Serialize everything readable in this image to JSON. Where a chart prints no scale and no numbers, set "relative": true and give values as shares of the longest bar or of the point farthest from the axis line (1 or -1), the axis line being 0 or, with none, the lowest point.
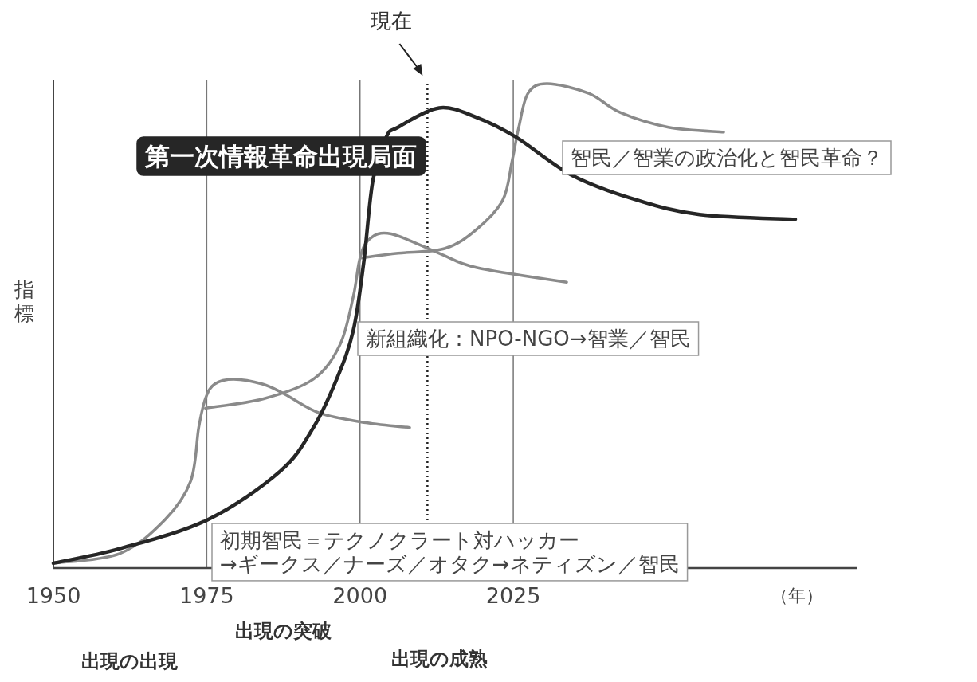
{
  "chart_data": {
    "type": "line",
    "relative": true,
    "ylabel": "指標",
    "xlabel": "（年）",
    "xlim": [
      1950,
      2081
    ],
    "xticks": [
      1950,
      1975,
      2000,
      2025
    ],
    "tick_labels": "x",
    "grid": false,
    "marker": "none",
    "line_style": "solid",
    "series": [
      {
        "name": "第一次情報革命出現局面",
        "color": "#262626",
        "x": [
          1950,
          1960.8,
          1975.2,
          1987,
          1992.4,
          1996.2,
          1998.9,
          2000.6,
          2002.1,
          2004.3,
          2006.2,
          2012.9,
          2019.1,
          2025.4,
          2034.7,
          2045.1,
          2055.4,
          2071
        ],
        "values": [
          0.01,
          0.04,
          0.1,
          0.2,
          0.29,
          0.39,
          0.49,
          0.63,
          0.8,
          0.89,
          0.91,
          0.95,
          0.93,
          0.89,
          0.81,
          0.76,
          0.73,
          0.72
        ]
      },
      {
        "name": "初期智民＝テクノクラート対ハッカー\n→ギークス／ナーズ／オタク→ネティズン／智民",
        "color": "#8a8a8a",
        "x": [
          1950,
          1960.8,
          1968.2,
          1972.4,
          1973.7,
          1974.8,
          1976.3,
          1979.4,
          1984.1,
          1987.6,
          1993.4,
          2001,
          2008.1
        ],
        "values": [
          0.01,
          0.03,
          0.1,
          0.18,
          0.29,
          0.35,
          0.38,
          0.39,
          0.38,
          0.36,
          0.32,
          0.3,
          0.29
        ]
      },
      {
        "name": "新組織化：NPO-NGO→智業／智民",
        "color": "#8a8a8a",
        "x": [
          1974.8,
          1984.4,
          1992.4,
          1996.7,
          1998.9,
          2000,
          2001.6,
          2005.1,
          2012.9,
          2019.1,
          2033.7
        ],
        "values": [
          0.33,
          0.35,
          0.39,
          0.46,
          0.56,
          0.64,
          0.68,
          0.69,
          0.65,
          0.62,
          0.59
        ]
      },
      {
        "name": "智民／智業の政治化と智民革命？",
        "color": "#8a8a8a",
        "x": [
          2000,
          2006.2,
          2013.9,
          2019.1,
          2023.3,
          2024.8,
          2025.9,
          2027.4,
          2030.5,
          2037.3,
          2042.5,
          2050.3,
          2059.3
        ],
        "values": [
          0.64,
          0.65,
          0.66,
          0.7,
          0.76,
          0.84,
          0.91,
          0.98,
          1.0,
          0.98,
          0.94,
          0.91,
          0.9
        ]
      }
    ],
    "ref_lines": [
      {
        "axis": "x",
        "value": 1975,
        "color": "#777777",
        "line_style": "solid"
      },
      {
        "axis": "x",
        "value": 2000,
        "color": "#777777",
        "line_style": "solid"
      },
      {
        "axis": "x",
        "value": 2025,
        "color": "#777777",
        "line_style": "solid"
      },
      {
        "axis": "x",
        "value": 2011,
        "color": "#222222",
        "line_style": "dotted",
        "label": "現在"
      }
    ],
    "annotations": [
      "出現の出現",
      "出現の突破",
      "出現の成熟"
    ]
  }
}
